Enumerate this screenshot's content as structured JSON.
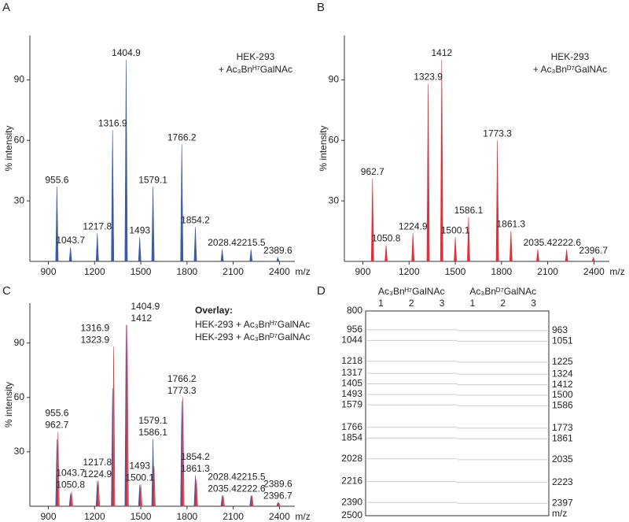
{
  "chart_data": [
    {
      "type": "spectrum",
      "panel": "A",
      "annotation": [
        "HEK-293",
        "+ Ac₃Bnᴴ⁷GalNAc"
      ],
      "y_label": "% intensity",
      "x_label": "m/z",
      "xlim": [
        780,
        2500
      ],
      "ylim": [
        0,
        112
      ],
      "xticks": [
        900,
        1200,
        1500,
        1800,
        2100,
        2400
      ],
      "yticks": [
        30,
        60,
        90
      ],
      "series": [
        {
          "color": "#3b5ba5",
          "x": [
            955.6,
            1043.7,
            1217.8,
            1316.9,
            1404.9,
            1493.0,
            1579.1,
            1766.2,
            1854.2,
            2028.4,
            2215.5,
            2389.6
          ],
          "values": [
            37,
            7,
            14,
            65,
            100,
            12,
            37,
            58,
            17,
            6,
            6,
            2
          ]
        }
      ]
    },
    {
      "type": "spectrum",
      "panel": "B",
      "annotation": [
        "HEK-293",
        "+ Ac₃Bnᴰ⁷GalNAc"
      ],
      "y_label": "% intensity",
      "x_label": "m/z",
      "xlim": [
        780,
        2500
      ],
      "ylim": [
        0,
        112
      ],
      "xticks": [
        900,
        1200,
        1500,
        1800,
        2100,
        2400
      ],
      "yticks": [
        30,
        60,
        90
      ],
      "series": [
        {
          "color": "#e0303a",
          "x": [
            962.7,
            1050.8,
            1224.9,
            1323.9,
            1412.0,
            1500.1,
            1586.1,
            1773.3,
            1861.3,
            2035.4,
            2222.6,
            2396.7
          ],
          "values": [
            41,
            8,
            14,
            88,
            100,
            12,
            22,
            60,
            15,
            6,
            6,
            2
          ]
        }
      ]
    },
    {
      "type": "spectrum",
      "panel": "C",
      "annotation_title": "Overlay:",
      "y_label": "% intensity",
      "x_label": "m/z",
      "xlim": [
        780,
        2500
      ],
      "ylim": [
        0,
        112
      ],
      "xticks": [
        900,
        1200,
        1500,
        1800,
        2100,
        2400
      ],
      "yticks": [
        30,
        60,
        90
      ],
      "series": [
        {
          "name": "HEK-293 + Ac₃Bnᴴ⁷GalNAc",
          "color": "#3b5ba5",
          "x": [
            955.6,
            1043.7,
            1217.8,
            1316.9,
            1404.9,
            1493.0,
            1579.1,
            1766.2,
            1854.2,
            2028.4,
            2215.5,
            2389.6
          ],
          "values": [
            37,
            7,
            14,
            65,
            100,
            12,
            37,
            58,
            17,
            6,
            6,
            2
          ]
        },
        {
          "name": "HEK-293 + Ac₃Bnᴰ⁷GalNAc",
          "color": "#e0303a",
          "x": [
            962.7,
            1050.8,
            1224.9,
            1323.9,
            1412.0,
            1500.1,
            1586.1,
            1773.3,
            1861.3,
            2035.4,
            2222.6,
            2396.7
          ],
          "values": [
            41,
            8,
            14,
            88,
            100,
            12,
            22,
            60,
            15,
            6,
            6,
            2
          ]
        }
      ]
    },
    {
      "type": "gel",
      "panel": "D",
      "groups": [
        {
          "name": "Ac₃Bnᴴ⁷GalNAc",
          "lanes": [
            1,
            2,
            3
          ]
        },
        {
          "name": "Ac₃Bnᴰ⁷GalNAc",
          "lanes": [
            1,
            2,
            3
          ]
        }
      ],
      "ylim": [
        800,
        2500
      ],
      "yticks": [
        800,
        956,
        1044,
        1218,
        1317,
        1405,
        1493,
        1579,
        1766,
        1854,
        2028,
        2216,
        2390,
        2500
      ],
      "y2ticks": [
        963,
        1051,
        1225,
        1324,
        1412,
        1500,
        1586,
        1773,
        1861,
        2035,
        2223,
        2397
      ],
      "y2_label": "m/z"
    }
  ]
}
